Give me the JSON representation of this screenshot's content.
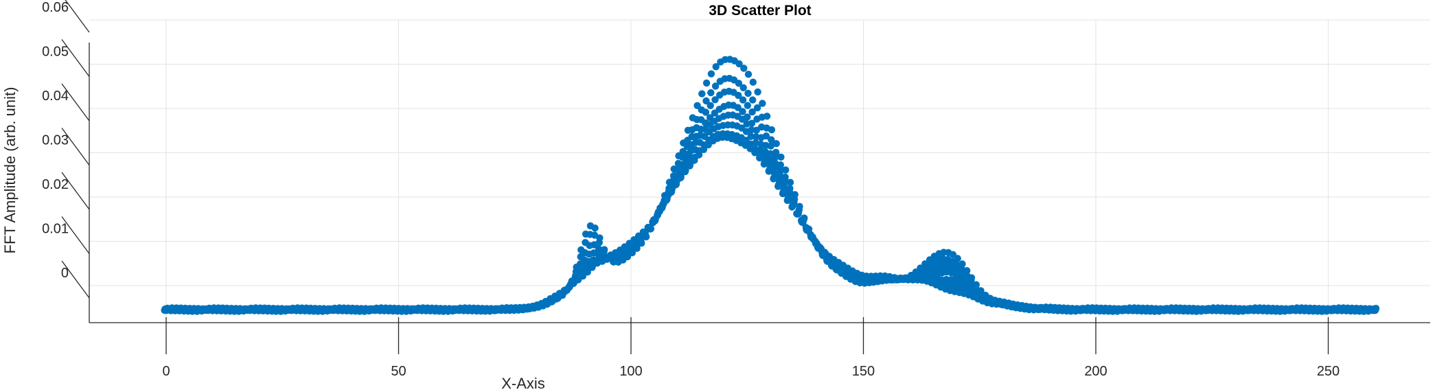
{
  "colors": {
    "marker": "#0072BD",
    "axis": "#262626",
    "grid": "#e3e3e3",
    "background": "#ffffff"
  },
  "chart_data": {
    "type": "scatter",
    "title": "3D Scatter Plot",
    "xlabel": "X-Axis",
    "ylabel": "FFT Amplitude (arb. unit)",
    "xlim": [
      -16,
      272
    ],
    "zlim": [
      -0.01,
      0.06
    ],
    "xticks": [
      0,
      50,
      100,
      150,
      200,
      250
    ],
    "xtick_labels": [
      "0",
      "50",
      "100",
      "150",
      "200",
      "250"
    ],
    "zticks": [
      0,
      0.01,
      0.02,
      0.03,
      0.04,
      0.05,
      0.06
    ],
    "ztick_labels": [
      "0",
      "0.01",
      "0.02",
      "0.03",
      "0.04",
      "0.05",
      "0.06"
    ],
    "grid": true,
    "view": "3d-projected",
    "x_range": [
      0,
      260
    ],
    "series_count": 8,
    "features": {
      "baseline": 0.0,
      "main_peak": {
        "x": 121,
        "z_values": [
          0.039,
          0.04,
          0.042,
          0.044,
          0.046,
          0.049,
          0.052,
          0.0565
        ]
      },
      "left_peak": {
        "x": 91,
        "z_values": [
          0.0055,
          0.0065,
          0.0075,
          0.009,
          0.011,
          0.013,
          0.0155,
          0.0175
        ]
      },
      "right_peak": {
        "x": 170,
        "z_values": [
          0.0045,
          0.0055,
          0.0065,
          0.008,
          0.009,
          0.01,
          0.011,
          0.0125
        ]
      },
      "shoulder_levels": {
        "near_95": 0.0065,
        "near_155": 0.0065
      }
    }
  }
}
